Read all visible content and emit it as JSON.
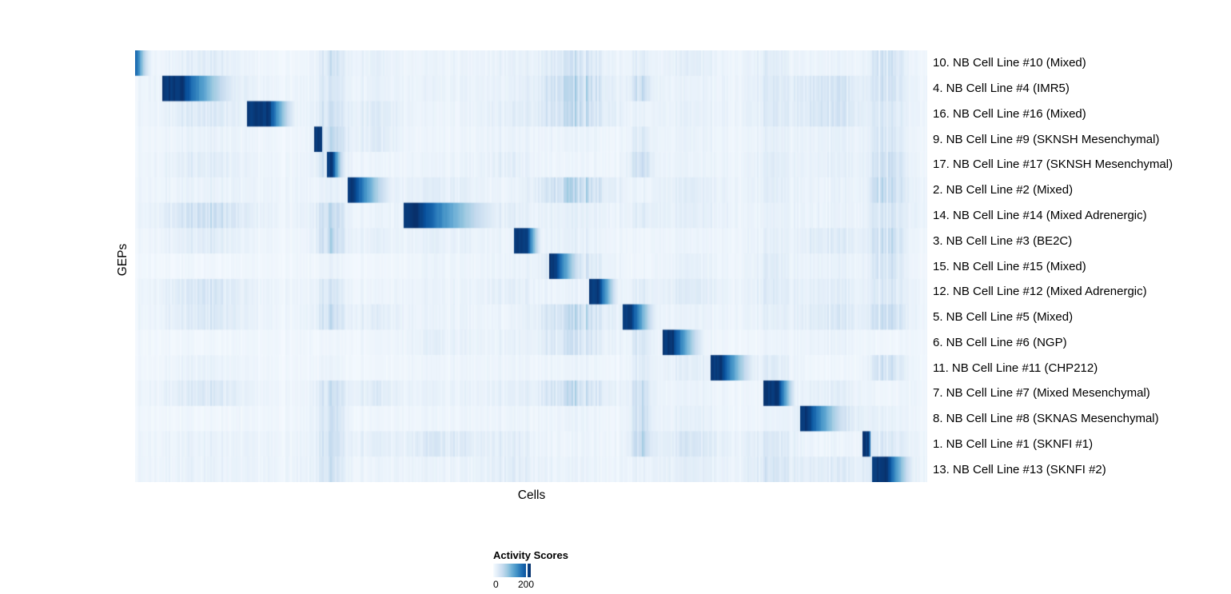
{
  "chart_data": {
    "type": "heatmap",
    "title": "",
    "xlabel": "Cells",
    "ylabel": "GEPs",
    "colormap_name": "Blues",
    "colormap_stops": [
      "#f7fbff",
      "#deebf7",
      "#c6dbef",
      "#9ecae1",
      "#6baed6",
      "#4292c6",
      "#2171b5",
      "#08519c",
      "#08306b"
    ],
    "legend": {
      "title": "Activity Scores",
      "min_label": "0",
      "max_label": "200",
      "min_value": 0,
      "max_value": 200,
      "tick_fraction": 0.87
    },
    "rows": [
      {
        "label": "10. NB Cell Line #10 (Mixed)",
        "block": {
          "start": 0.0,
          "end": 0.03,
          "head": 0.05,
          "k": 2.5,
          "peak": 0.8
        }
      },
      {
        "label": "4. NB Cell Line #4 (IMR5)",
        "block": {
          "start": 0.033,
          "end": 0.142,
          "head": 0.24,
          "k": 1.5,
          "peak": 1.0
        }
      },
      {
        "label": "16. NB Cell Line #16 (Mixed)",
        "block": {
          "start": 0.14,
          "end": 0.208,
          "head": 0.42,
          "k": 1.5,
          "peak": 1.0
        }
      },
      {
        "label": "9. NB Cell Line #9 (SKNSH Mesenchymal)",
        "block": {
          "start": 0.226,
          "end": 0.237,
          "head": 0.8,
          "k": 1.2,
          "peak": 1.0
        }
      },
      {
        "label": "17. NB Cell Line #17 (SKNSH Mesenchymal)",
        "block": {
          "start": 0.242,
          "end": 0.266,
          "head": 0.26,
          "k": 1.4,
          "peak": 1.0
        }
      },
      {
        "label": "2. NB Cell Line #2 (Mixed)",
        "block": {
          "start": 0.267,
          "end": 0.337,
          "head": 0.13,
          "k": 1.7,
          "peak": 1.0
        }
      },
      {
        "label": "14. NB Cell Line #14 (Mixed Adrenergic)",
        "block": {
          "start": 0.338,
          "end": 0.481,
          "head": 0.14,
          "k": 1.5,
          "peak": 1.0
        }
      },
      {
        "label": "3. NB Cell Line #3 (BE2C)",
        "block": {
          "start": 0.478,
          "end": 0.515,
          "head": 0.44,
          "k": 1.4,
          "peak": 1.0
        }
      },
      {
        "label": "15. NB Cell Line #15 (Mixed)",
        "block": {
          "start": 0.522,
          "end": 0.571,
          "head": 0.16,
          "k": 1.4,
          "peak": 1.0
        }
      },
      {
        "label": "12. NB Cell Line #12 (Mixed Adrenergic)",
        "block": {
          "start": 0.573,
          "end": 0.614,
          "head": 0.3,
          "k": 1.4,
          "peak": 1.0
        }
      },
      {
        "label": "5. NB Cell Line #5 (Mixed)",
        "block": {
          "start": 0.616,
          "end": 0.663,
          "head": 0.22,
          "k": 1.4,
          "peak": 1.0
        }
      },
      {
        "label": "6. NB Cell Line #6 (NGP)",
        "block": {
          "start": 0.666,
          "end": 0.726,
          "head": 0.22,
          "k": 1.5,
          "peak": 1.0
        }
      },
      {
        "label": "11. NB Cell Line #11 (CHP212)",
        "block": {
          "start": 0.727,
          "end": 0.79,
          "head": 0.22,
          "k": 1.5,
          "peak": 1.0
        }
      },
      {
        "label": "7. NB Cell Line #7 (Mixed Mesenchymal)",
        "block": {
          "start": 0.792,
          "end": 0.837,
          "head": 0.45,
          "k": 1.3,
          "peak": 1.0
        }
      },
      {
        "label": "8. NB Cell Line #8 (SKNAS Mesenchymal)",
        "block": {
          "start": 0.839,
          "end": 0.917,
          "head": 0.14,
          "k": 1.6,
          "peak": 1.0
        }
      },
      {
        "label": "1. NB Cell Line #1 (SKNFI #1)",
        "block": {
          "start": 0.919,
          "end": 0.93,
          "head": 0.7,
          "k": 1.2,
          "peak": 1.0
        }
      },
      {
        "label": "13. NB Cell Line #13 (SKNFI #2)",
        "block": {
          "start": 0.931,
          "end": 0.99,
          "head": 0.32,
          "k": 1.5,
          "peak": 1.0
        }
      }
    ],
    "noise": {
      "seed": 7,
      "base": 0.1,
      "max": 0.38,
      "bands": [
        {
          "c": 0.087,
          "w": 0.045,
          "s": 0.3
        },
        {
          "c": 0.247,
          "w": 0.018,
          "s": 0.55
        },
        {
          "c": 0.3,
          "w": 0.03,
          "s": 0.22
        },
        {
          "c": 0.387,
          "w": 0.04,
          "s": 0.2
        },
        {
          "c": 0.47,
          "w": 0.03,
          "s": 0.15
        },
        {
          "c": 0.553,
          "w": 0.04,
          "s": 0.5
        },
        {
          "c": 0.637,
          "w": 0.012,
          "s": 0.55
        },
        {
          "c": 0.7,
          "w": 0.035,
          "s": 0.22
        },
        {
          "c": 0.8,
          "w": 0.03,
          "s": 0.25
        },
        {
          "c": 0.878,
          "w": 0.035,
          "s": 0.45
        },
        {
          "c": 0.948,
          "w": 0.022,
          "s": 0.5
        }
      ]
    },
    "layout_hints": {
      "row_label_side": "right",
      "legend_position": "bottom-center",
      "grid": false
    }
  }
}
